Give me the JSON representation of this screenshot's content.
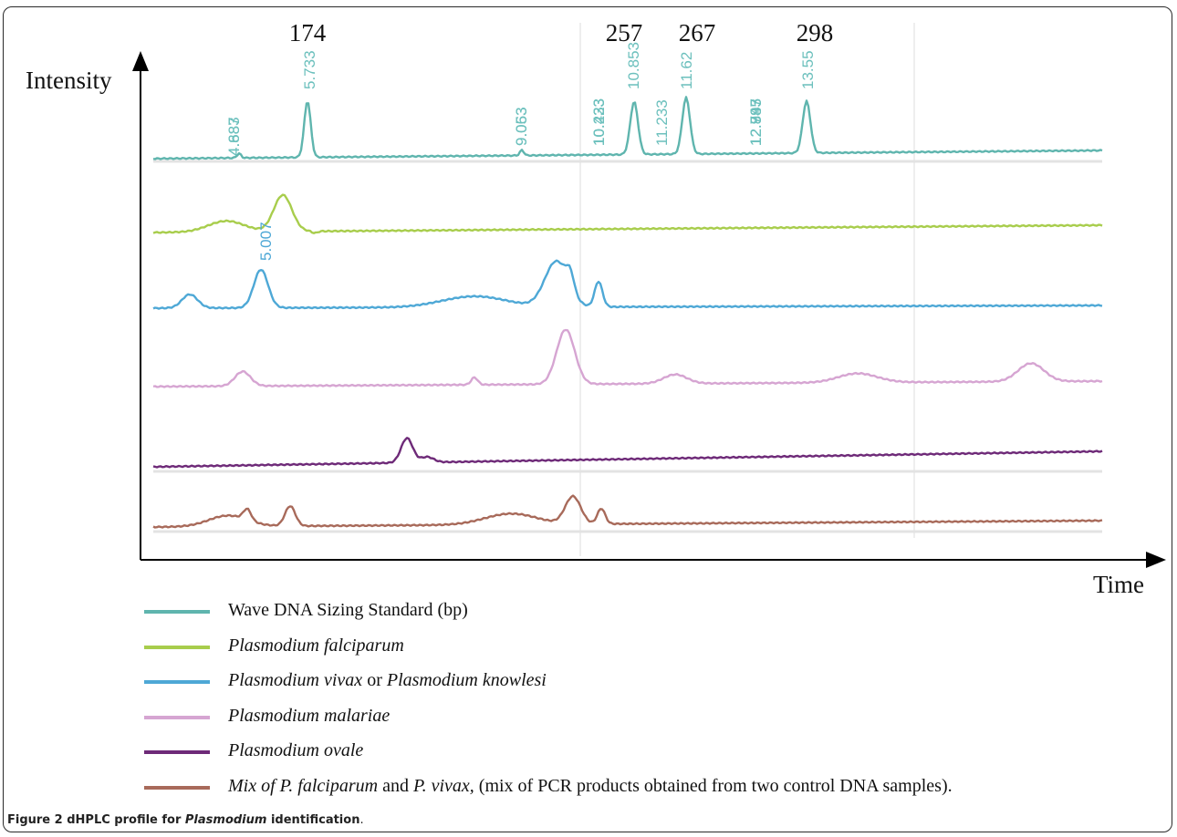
{
  "chart_data": {
    "type": "line",
    "ylabel": "Intensity",
    "xlabel": "Time",
    "top_labels": [
      "174",
      "257",
      "267",
      "298"
    ],
    "peak_labels": [
      "4.683",
      "4.887",
      "5.733",
      "9.053",
      "9.063",
      "10.223",
      "10.233",
      "10.433",
      "10.853",
      "11.233",
      "11.62",
      "12.747",
      "12.883",
      "12.995",
      "13.55"
    ],
    "series": [
      {
        "name": "Wave DNA Sizing Standard (bp)",
        "color": "#5fb5ae"
      },
      {
        "name": "Plasmodium falciparum",
        "color": "#a8cd4c"
      },
      {
        "name": "Plasmodium vivax or Plasmodium knowlesi",
        "color": "#4ea8d6",
        "peak_label": "5.007"
      },
      {
        "name": "Plasmodium malariae",
        "color": "#d6a5d2"
      },
      {
        "name": "Plasmodium ovale",
        "color": "#6e2a78"
      },
      {
        "name": "Mix of P. falciparum and P. vivax",
        "color": "#a86a5a"
      }
    ]
  },
  "legend": [
    {
      "color": "#5fb5ae",
      "parts": [
        {
          "t": "Wave DNA Sizing Standard (bp)",
          "i": false
        }
      ]
    },
    {
      "color": "#a8cd4c",
      "parts": [
        {
          "t": "Plasmodium falciparum",
          "i": true
        }
      ]
    },
    {
      "color": "#4ea8d6",
      "parts": [
        {
          "t": "Plasmodium vivax",
          "i": true
        },
        {
          "t": " or ",
          "i": false
        },
        {
          "t": "Plasmodium knowlesi",
          "i": true
        }
      ]
    },
    {
      "color": "#d6a5d2",
      "parts": [
        {
          "t": "Plasmodium malariae",
          "i": true
        }
      ]
    },
    {
      "color": "#6e2a78",
      "parts": [
        {
          "t": "Plasmodium ovale",
          "i": true
        }
      ]
    },
    {
      "color": "#a86a5a",
      "parts": [
        {
          "t": "Mix of P. falciparum",
          "i": true
        },
        {
          "t": " and ",
          "i": false
        },
        {
          "t": "P. vivax,",
          "i": true
        },
        {
          "t": " (mix of PCR products obtained from two control DNA samples).",
          "i": false
        }
      ]
    }
  ],
  "caption": {
    "figure": "Figure 2",
    "text_before": " dHPLC profile for ",
    "italic": "Plasmodium",
    "text_after": " identification",
    "end": "."
  }
}
